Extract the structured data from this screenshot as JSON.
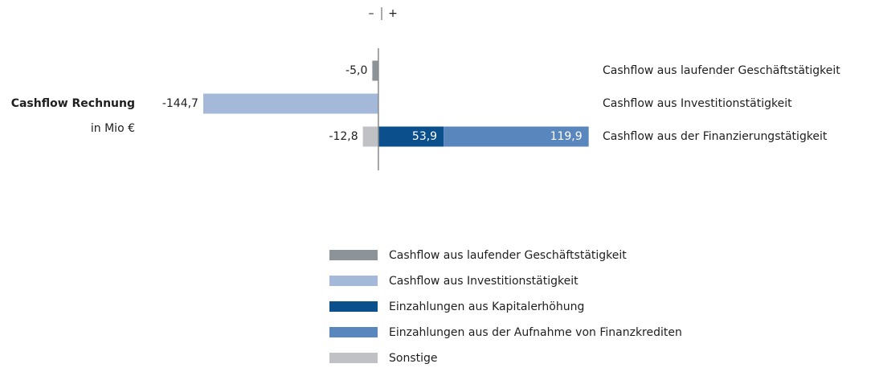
{
  "chart_data": {
    "type": "diverging-stacked-bar",
    "title": "Cashflow Rechnung",
    "subtitle": "in Mio €",
    "negative_label": "–",
    "positive_label": "+",
    "categories": [
      "Cashflow aus laufender Geschäftstätigkeit",
      "Cashflow aus Investitionstätigkeit",
      "Cashflow aus der Finanzierungstätigkeit"
    ],
    "xlim": [
      -150,
      180
    ],
    "series": [
      {
        "name": "Cashflow aus laufender Geschäftstätigkeit",
        "color": "#8c9399",
        "values": [
          -5.0,
          null,
          null
        ],
        "value_labels": [
          "-5,0",
          null,
          null
        ]
      },
      {
        "name": "Cashflow aus Investitionstätigkeit",
        "color": "#a4b8da",
        "values": [
          null,
          -144.7,
          null
        ],
        "value_labels": [
          null,
          "-144,7",
          null
        ]
      },
      {
        "name": "Einzahlungen aus Kapitalerhöhung",
        "color": "#0b4f8c",
        "values": [
          null,
          null,
          53.9
        ],
        "value_labels": [
          null,
          null,
          "53,9"
        ]
      },
      {
        "name": "Einzahlungen aus der Aufnahme von Finanzkrediten",
        "color": "#5a86be",
        "values": [
          null,
          null,
          119.9
        ],
        "value_labels": [
          null,
          null,
          "119,9"
        ]
      },
      {
        "name": "Sonstige",
        "color": "#bfc1c4",
        "values": [
          null,
          null,
          -12.8
        ],
        "value_labels": [
          null,
          null,
          "-12,8"
        ]
      }
    ]
  }
}
